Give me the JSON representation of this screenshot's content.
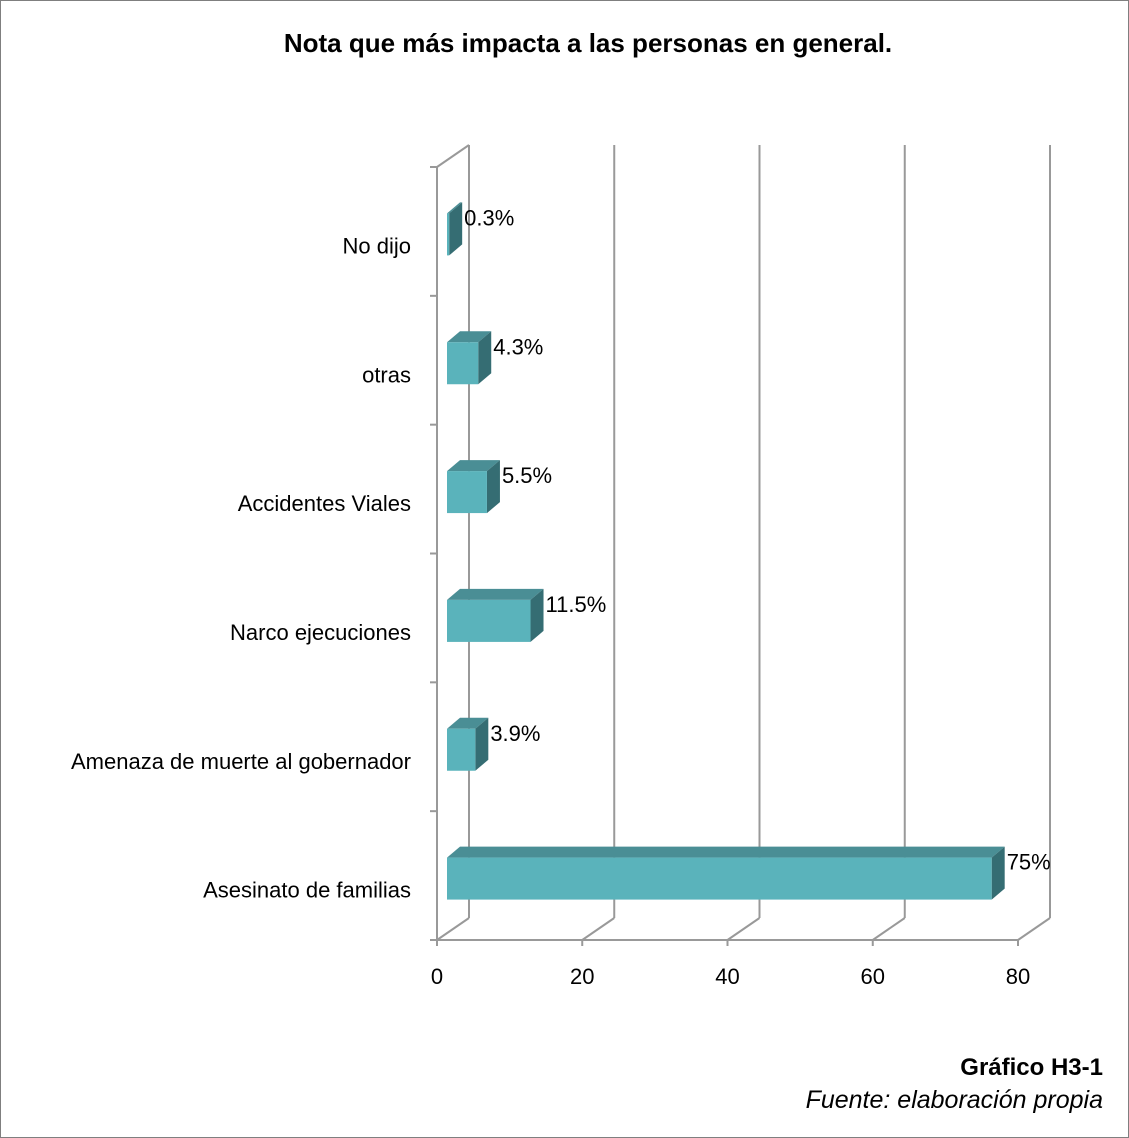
{
  "chart_data": {
    "type": "bar",
    "orientation": "horizontal",
    "title": "Nota que más impacta a las personas en general.",
    "categories": [
      "Asesinato de familias",
      "Amenaza de muerte al gobernador",
      "Narco ejecuciones",
      "Accidentes Viales",
      "otras",
      "No dijo"
    ],
    "values": [
      75,
      3.9,
      11.5,
      5.5,
      4.3,
      0.3
    ],
    "value_labels": [
      "75%",
      "3.9%",
      "11.5%",
      "5.5%",
      "4.3%",
      "0.3%"
    ],
    "xlim": [
      0,
      80
    ],
    "xticks": [
      0,
      20,
      40,
      60,
      80
    ],
    "xtick_labels": [
      "0",
      "20",
      "40",
      "60",
      "80"
    ],
    "grid": true,
    "style": "3d",
    "colors": {
      "bar_front": "#5ab3bb",
      "bar_top": "#4a8e95",
      "bar_side": "#356d73",
      "grid": "#999999"
    }
  },
  "caption": {
    "id": "Gráfico H3-1",
    "source": "Fuente: elaboración propia"
  }
}
